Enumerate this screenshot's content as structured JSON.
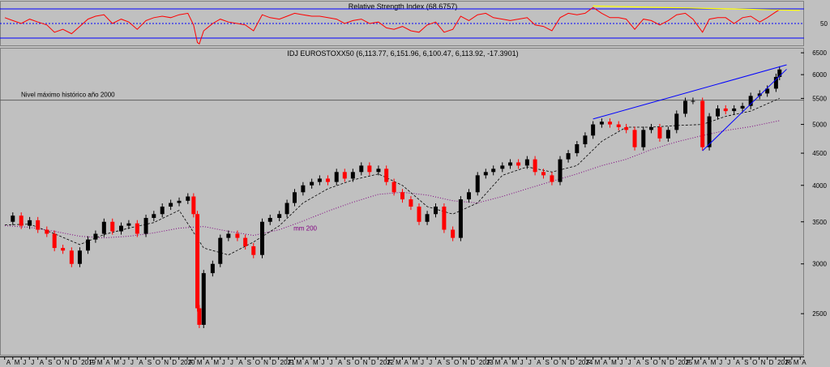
{
  "chart_data": [
    {
      "type": "line",
      "panel": "rsi",
      "title": "Relative Strength Index (68.6757)",
      "levels": [
        70,
        50,
        30
      ],
      "y_tick_labels": [
        "50"
      ],
      "ylim": [
        20,
        80
      ],
      "series": [
        {
          "color": "#ff0000",
          "x": [
            "2018-04-02",
            "2018-05-01",
            "2018-06-01",
            "2018-07-02",
            "2018-08-01",
            "2018-09-03",
            "2018-10-01",
            "2018-11-01",
            "2018-12-03",
            "2019-01-02",
            "2019-02-01",
            "2019-03-01",
            "2019-04-01",
            "2019-05-02",
            "2019-06-03",
            "2019-07-01",
            "2019-08-01",
            "2019-09-02",
            "2019-10-01",
            "2019-11-01",
            "2019-12-02",
            "2020-01-02",
            "2020-02-03",
            "2020-02-24",
            "2020-03-09",
            "2020-03-16",
            "2020-04-01",
            "2020-05-04",
            "2020-06-01",
            "2020-07-01",
            "2020-08-03",
            "2020-09-01",
            "2020-10-01",
            "2020-11-02",
            "2020-12-01",
            "2021-01-04",
            "2021-02-01",
            "2021-03-01",
            "2021-04-01",
            "2021-05-03",
            "2021-06-01",
            "2021-07-01",
            "2021-08-02",
            "2021-09-01",
            "2021-10-01",
            "2021-11-01",
            "2021-12-01",
            "2022-01-03",
            "2022-02-01",
            "2022-03-01",
            "2022-04-01",
            "2022-05-02",
            "2022-06-01",
            "2022-07-01",
            "2022-08-01",
            "2022-09-01",
            "2022-10-03",
            "2022-11-01",
            "2022-12-01",
            "2023-01-02",
            "2023-02-01",
            "2023-03-01",
            "2023-04-03",
            "2023-05-02",
            "2023-06-01",
            "2023-07-03",
            "2023-08-01",
            "2023-09-01",
            "2023-10-02",
            "2023-11-01",
            "2023-12-01",
            "2024-01-02",
            "2024-02-01",
            "2024-03-01",
            "2024-04-02",
            "2024-05-02",
            "2024-06-03",
            "2024-07-01",
            "2024-08-01",
            "2024-09-02",
            "2024-10-01",
            "2024-11-01",
            "2024-12-02",
            "2025-01-02",
            "2025-02-03",
            "2025-03-03",
            "2025-04-07",
            "2025-05-02",
            "2025-06-02",
            "2025-07-01",
            "2025-08-01",
            "2025-09-01",
            "2025-10-01",
            "2025-11-03",
            "2025-12-01",
            "2026-01-02",
            "2026-01-15"
          ],
          "values": [
            58,
            54,
            50,
            56,
            52,
            48,
            38,
            42,
            36,
            46,
            56,
            60,
            62,
            50,
            56,
            52,
            42,
            54,
            58,
            60,
            58,
            62,
            64,
            48,
            24,
            22,
            40,
            50,
            56,
            52,
            50,
            48,
            40,
            62,
            58,
            56,
            60,
            64,
            62,
            60,
            60,
            58,
            56,
            50,
            54,
            56,
            50,
            52,
            44,
            42,
            46,
            40,
            38,
            48,
            52,
            38,
            42,
            60,
            54,
            62,
            64,
            58,
            56,
            54,
            56,
            58,
            48,
            46,
            40,
            58,
            64,
            62,
            64,
            72,
            64,
            58,
            58,
            56,
            42,
            56,
            54,
            48,
            54,
            62,
            64,
            56,
            38,
            56,
            58,
            58,
            50,
            58,
            60,
            52,
            58,
            66,
            69
          ]
        }
      ],
      "annotations": [
        {
          "type": "trendline",
          "color": "#ffff00",
          "x": [
            "2024-03-01",
            "2026-01-15"
          ],
          "y": [
            74,
            68
          ]
        }
      ]
    },
    {
      "type": "candlestick",
      "panel": "price",
      "title": "IDJ EUROSTOXX50 (6,113.77, 6,151.96, 6,100.47, 6,113.92, -17.3901)",
      "yscale": "log",
      "ylim": [
        2150,
        6600
      ],
      "y_ticks": [
        2500,
        3000,
        3500,
        4000,
        4500,
        5000,
        5500,
        6000,
        6500
      ],
      "x_range": [
        "2018-03-15",
        "2026-04-15"
      ],
      "x_tick_labels": [
        "A",
        "M",
        "J",
        "J",
        "A",
        "S",
        "O",
        "N",
        "D",
        "2019",
        "F",
        "M",
        "A",
        "M",
        "J",
        "J",
        "A",
        "S",
        "O",
        "N",
        "D",
        "2020",
        "F",
        "M",
        "A",
        "M",
        "J",
        "J",
        "A",
        "S",
        "O",
        "N",
        "D",
        "2021",
        "F",
        "M",
        "A",
        "M",
        "J",
        "J",
        "A",
        "S",
        "O",
        "N",
        "D",
        "2022",
        "F",
        "M",
        "A",
        "M",
        "J",
        "J",
        "A",
        "S",
        "O",
        "N",
        "D",
        "2023",
        "F",
        "M",
        "A",
        "M",
        "J",
        "J",
        "A",
        "S",
        "O",
        "N",
        "D",
        "2024",
        "F",
        "M",
        "A",
        "M",
        "J",
        "J",
        "A",
        "S",
        "O",
        "N",
        "D",
        "2025",
        "F",
        "M",
        "A",
        "M",
        "J",
        "J",
        "A",
        "S",
        "O",
        "N",
        "D",
        "2026",
        "F",
        "M",
        "A"
      ],
      "up_color": "#000000",
      "down_color": "#ff0000",
      "series": [
        {
          "x": [
            "2018-04-02",
            "2018-05-01",
            "2018-06-01",
            "2018-07-02",
            "2018-08-01",
            "2018-09-03",
            "2018-10-01",
            "2018-11-01",
            "2018-12-03",
            "2019-01-02",
            "2019-02-01",
            "2019-03-01",
            "2019-04-01",
            "2019-05-02",
            "2019-06-03",
            "2019-07-01",
            "2019-08-01",
            "2019-09-02",
            "2019-10-01",
            "2019-11-01",
            "2019-12-02",
            "2020-01-02",
            "2020-02-03",
            "2020-02-24",
            "2020-03-09",
            "2020-03-16",
            "2020-04-01",
            "2020-05-04",
            "2020-06-01",
            "2020-07-01",
            "2020-08-03",
            "2020-09-01",
            "2020-10-01",
            "2020-11-02",
            "2020-12-01",
            "2021-01-04",
            "2021-02-01",
            "2021-03-01",
            "2021-04-01",
            "2021-05-03",
            "2021-06-01",
            "2021-07-01",
            "2021-08-02",
            "2021-09-01",
            "2021-10-01",
            "2021-11-01",
            "2021-12-01",
            "2022-01-03",
            "2022-02-01",
            "2022-03-01",
            "2022-04-01",
            "2022-05-02",
            "2022-06-01",
            "2022-07-01",
            "2022-08-01",
            "2022-09-01",
            "2022-10-03",
            "2022-11-01",
            "2022-12-01",
            "2023-01-02",
            "2023-02-01",
            "2023-03-01",
            "2023-04-03",
            "2023-05-02",
            "2023-06-01",
            "2023-07-03",
            "2023-08-01",
            "2023-09-01",
            "2023-10-02",
            "2023-11-01",
            "2023-12-01",
            "2024-01-02",
            "2024-02-01",
            "2024-03-01",
            "2024-04-02",
            "2024-05-02",
            "2024-06-03",
            "2024-07-01",
            "2024-08-01",
            "2024-09-02",
            "2024-10-01",
            "2024-11-01",
            "2024-12-02",
            "2025-01-02",
            "2025-02-03",
            "2025-03-03",
            "2025-04-07",
            "2025-05-02",
            "2025-06-02",
            "2025-07-01",
            "2025-08-01",
            "2025-09-01",
            "2025-10-01",
            "2025-11-03",
            "2025-12-01",
            "2026-01-02",
            "2026-01-15"
          ],
          "values": [
            3500,
            3580,
            3450,
            3520,
            3400,
            3350,
            3180,
            3150,
            3000,
            3150,
            3280,
            3350,
            3500,
            3380,
            3450,
            3480,
            3350,
            3550,
            3600,
            3700,
            3750,
            3780,
            3840,
            3600,
            2550,
            2400,
            2900,
            3000,
            3300,
            3350,
            3300,
            3200,
            3100,
            3500,
            3550,
            3600,
            3750,
            3900,
            4000,
            4050,
            4100,
            4050,
            4200,
            4100,
            4200,
            4300,
            4200,
            4250,
            4050,
            3900,
            3800,
            3700,
            3500,
            3600,
            3700,
            3400,
            3300,
            3800,
            3900,
            4150,
            4200,
            4250,
            4300,
            4350,
            4300,
            4400,
            4200,
            4150,
            4050,
            4400,
            4500,
            4650,
            4800,
            5000,
            5050,
            5000,
            4950,
            4900,
            4600,
            4900,
            4950,
            4750,
            4900,
            5200,
            5450,
            5450,
            4600,
            5150,
            5300,
            5250,
            5300,
            5350,
            5550,
            5600,
            5700,
            5950,
            6114
          ]
        }
      ],
      "overlays": [
        {
          "name": "mm 200",
          "color": "#800080",
          "style": "dotted",
          "x": [
            "2018-04-02",
            "2018-07-02",
            "2018-10-01",
            "2019-01-02",
            "2019-04-01",
            "2019-07-01",
            "2019-10-01",
            "2020-01-02",
            "2020-04-01",
            "2020-07-01",
            "2020-10-01",
            "2021-01-04",
            "2021-04-01",
            "2021-07-01",
            "2021-10-01",
            "2022-01-03",
            "2022-04-01",
            "2022-07-01",
            "2022-10-03",
            "2023-01-02",
            "2023-04-03",
            "2023-07-03",
            "2023-10-02",
            "2024-01-02",
            "2024-04-02",
            "2024-07-01",
            "2024-10-01",
            "2025-01-02",
            "2025-04-07",
            "2025-07-01",
            "2025-10-01",
            "2026-01-15"
          ],
          "values": [
            3450,
            3430,
            3380,
            3320,
            3300,
            3320,
            3360,
            3420,
            3440,
            3380,
            3330,
            3400,
            3510,
            3640,
            3760,
            3870,
            3900,
            3860,
            3780,
            3750,
            3840,
            3950,
            4060,
            4170,
            4300,
            4400,
            4560,
            4690,
            4800,
            4890,
            4960,
            5070
          ]
        },
        {
          "color": "#000000",
          "style": "dashed",
          "x": [
            "2018-04-02",
            "2018-07-02",
            "2018-10-01",
            "2019-01-02",
            "2019-04-01",
            "2019-07-01",
            "2019-10-01",
            "2020-01-02",
            "2020-04-01",
            "2020-07-01",
            "2020-10-01",
            "2021-01-04",
            "2021-04-01",
            "2021-07-01",
            "2021-10-01",
            "2022-01-03",
            "2022-04-01",
            "2022-07-01",
            "2022-10-03",
            "2023-01-02",
            "2023-04-03",
            "2023-07-03",
            "2023-10-02",
            "2024-01-02",
            "2024-04-02",
            "2024-07-01",
            "2024-10-01",
            "2025-01-02",
            "2025-04-07",
            "2025-07-01",
            "2025-10-01",
            "2026-01-15"
          ],
          "values": [
            3460,
            3470,
            3350,
            3220,
            3340,
            3420,
            3490,
            3650,
            3180,
            3100,
            3250,
            3450,
            3750,
            3950,
            4080,
            4170,
            4000,
            3700,
            3600,
            3750,
            4150,
            4280,
            4200,
            4300,
            4700,
            4950,
            4950,
            4980,
            5000,
            5150,
            5250,
            5500
          ]
        }
      ],
      "annotations": [
        {
          "type": "hline",
          "value": 5464,
          "label": "Nivel máximo histórico año 2000",
          "color": "#606060"
        },
        {
          "type": "trendline",
          "color": "#0000ff",
          "x": [
            "2024-03-01",
            "2026-02-10"
          ],
          "y": [
            5100,
            6220
          ]
        },
        {
          "type": "trendline",
          "color": "#0000ff",
          "x": [
            "2025-04-07",
            "2026-02-10"
          ],
          "y": [
            4540,
            6120
          ]
        }
      ]
    }
  ]
}
